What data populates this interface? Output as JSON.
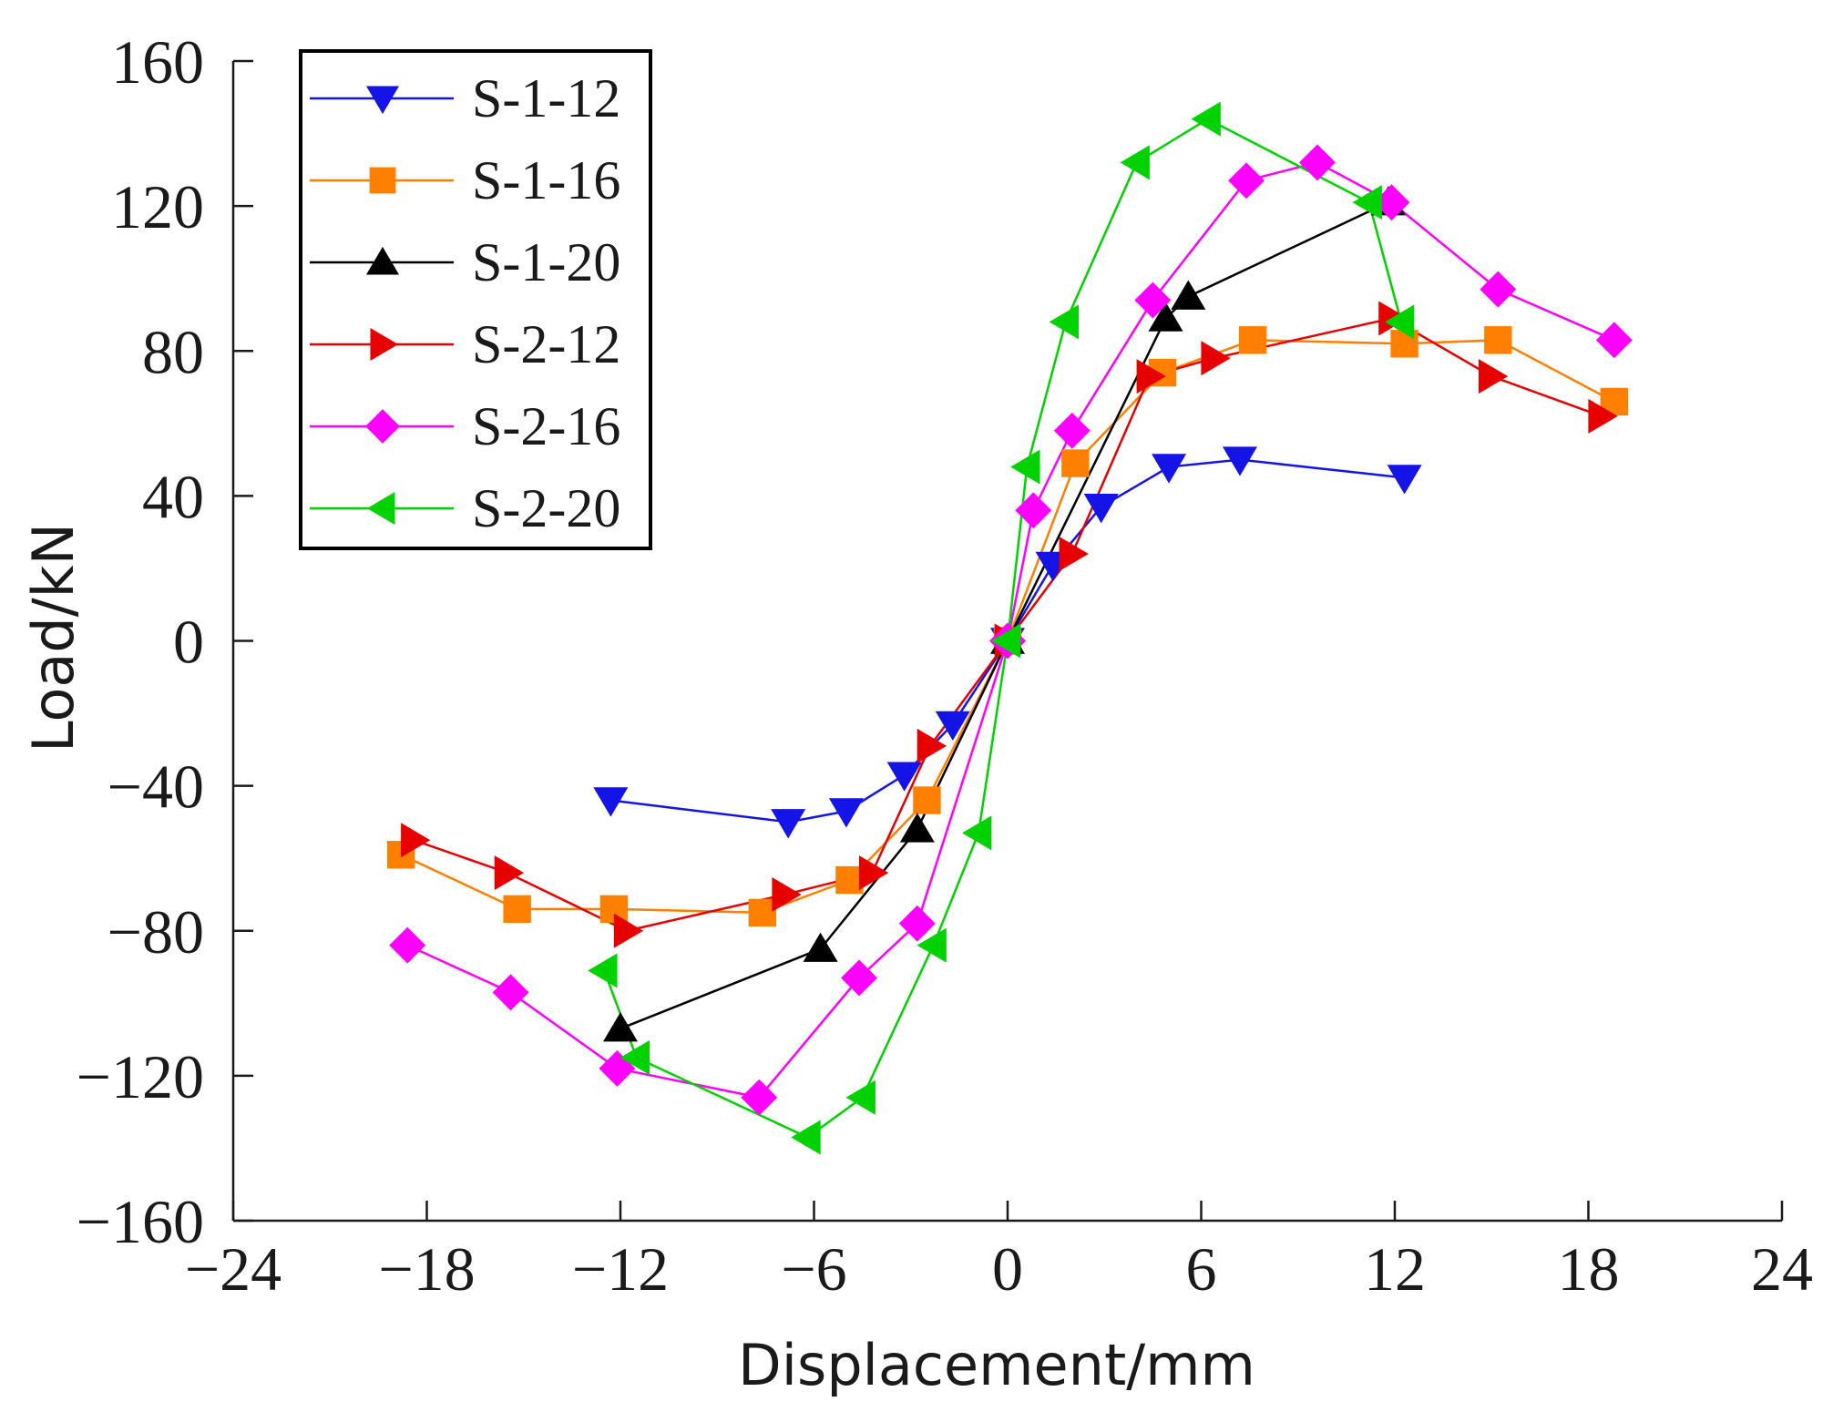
{
  "chart_data": {
    "type": "line",
    "title": "",
    "xlabel": "Displacement/mm",
    "ylabel": "Load/kN",
    "xlim": [
      -24,
      24
    ],
    "ylim": [
      -160,
      160
    ],
    "x_ticks": [
      -24,
      -18,
      -12,
      -6,
      0,
      6,
      12,
      18,
      24
    ],
    "y_ticks": [
      -160,
      -120,
      -80,
      -40,
      0,
      40,
      80,
      120,
      160
    ],
    "x_tick_labels": [
      "−24",
      "−18",
      "−12",
      "−6",
      "0",
      "6",
      "12",
      "18",
      "24"
    ],
    "y_tick_labels": [
      "−160",
      "−120",
      "−80",
      "−40",
      "0",
      "40",
      "80",
      "120",
      "160"
    ],
    "grid": false,
    "legend_position": "top-left",
    "series": [
      {
        "name": "S-1-12",
        "color": "#1414e6",
        "marker": "triangle-down",
        "points": [
          [
            -12.3,
            -44
          ],
          [
            -6.8,
            -50
          ],
          [
            -5,
            -47
          ],
          [
            -3.2,
            -37
          ],
          [
            -1.7,
            -23
          ],
          [
            0,
            0
          ],
          [
            1.4,
            21
          ],
          [
            2.9,
            37
          ],
          [
            5,
            48
          ],
          [
            7.2,
            50
          ],
          [
            12.3,
            45
          ]
        ]
      },
      {
        "name": "S-1-16",
        "color": "#ff8000",
        "marker": "square",
        "points": [
          [
            -18.8,
            -59
          ],
          [
            -15.2,
            -74
          ],
          [
            -12.2,
            -74
          ],
          [
            -7.6,
            -75
          ],
          [
            -4.9,
            -66
          ],
          [
            -2.5,
            -44
          ],
          [
            0,
            0
          ],
          [
            2.1,
            49
          ],
          [
            4.8,
            74
          ],
          [
            7.6,
            83
          ],
          [
            12.3,
            82
          ],
          [
            15.2,
            83
          ],
          [
            18.8,
            66
          ]
        ]
      },
      {
        "name": "S-1-20",
        "color": "#000000",
        "marker": "triangle-up",
        "points": [
          [
            -12,
            -107
          ],
          [
            -5.8,
            -85
          ],
          [
            -2.8,
            -52
          ],
          [
            0,
            0
          ],
          [
            4.9,
            89
          ],
          [
            5.6,
            95
          ],
          [
            11.8,
            121
          ]
        ]
      },
      {
        "name": "S-2-12",
        "color": "#e60000",
        "marker": "triangle-right",
        "points": [
          [
            -18.4,
            -55
          ],
          [
            -15.5,
            -64
          ],
          [
            -11.8,
            -80
          ],
          [
            -6.9,
            -70
          ],
          [
            -4.2,
            -64
          ],
          [
            -2.4,
            -29
          ],
          [
            0,
            0
          ],
          [
            2,
            24
          ],
          [
            4.4,
            73
          ],
          [
            6.4,
            78
          ],
          [
            11.9,
            89
          ],
          [
            15,
            73
          ],
          [
            18.4,
            62
          ]
        ]
      },
      {
        "name": "S-2-16",
        "color": "#ff00ff",
        "marker": "diamond",
        "points": [
          [
            -18.6,
            -84
          ],
          [
            -15.4,
            -97
          ],
          [
            -12.1,
            -118
          ],
          [
            -7.7,
            -126
          ],
          [
            -4.6,
            -93
          ],
          [
            -2.8,
            -78
          ],
          [
            0,
            0
          ],
          [
            0.8,
            36
          ],
          [
            2,
            58
          ],
          [
            4.5,
            94
          ],
          [
            7.4,
            127
          ],
          [
            9.6,
            132
          ],
          [
            11.9,
            121
          ],
          [
            15.2,
            97
          ],
          [
            18.8,
            83
          ]
        ]
      },
      {
        "name": "S-2-20",
        "color": "#00d200",
        "marker": "triangle-left",
        "points": [
          [
            -12.5,
            -91
          ],
          [
            -11.5,
            -115
          ],
          [
            -6.2,
            -137
          ],
          [
            -4.5,
            -126
          ],
          [
            -2.3,
            -84
          ],
          [
            -0.9,
            -53
          ],
          [
            0,
            0
          ],
          [
            0.6,
            48
          ],
          [
            1.8,
            88
          ],
          [
            4,
            132
          ],
          [
            6.2,
            144
          ],
          [
            11.2,
            121
          ],
          [
            12.2,
            88
          ]
        ]
      }
    ]
  }
}
